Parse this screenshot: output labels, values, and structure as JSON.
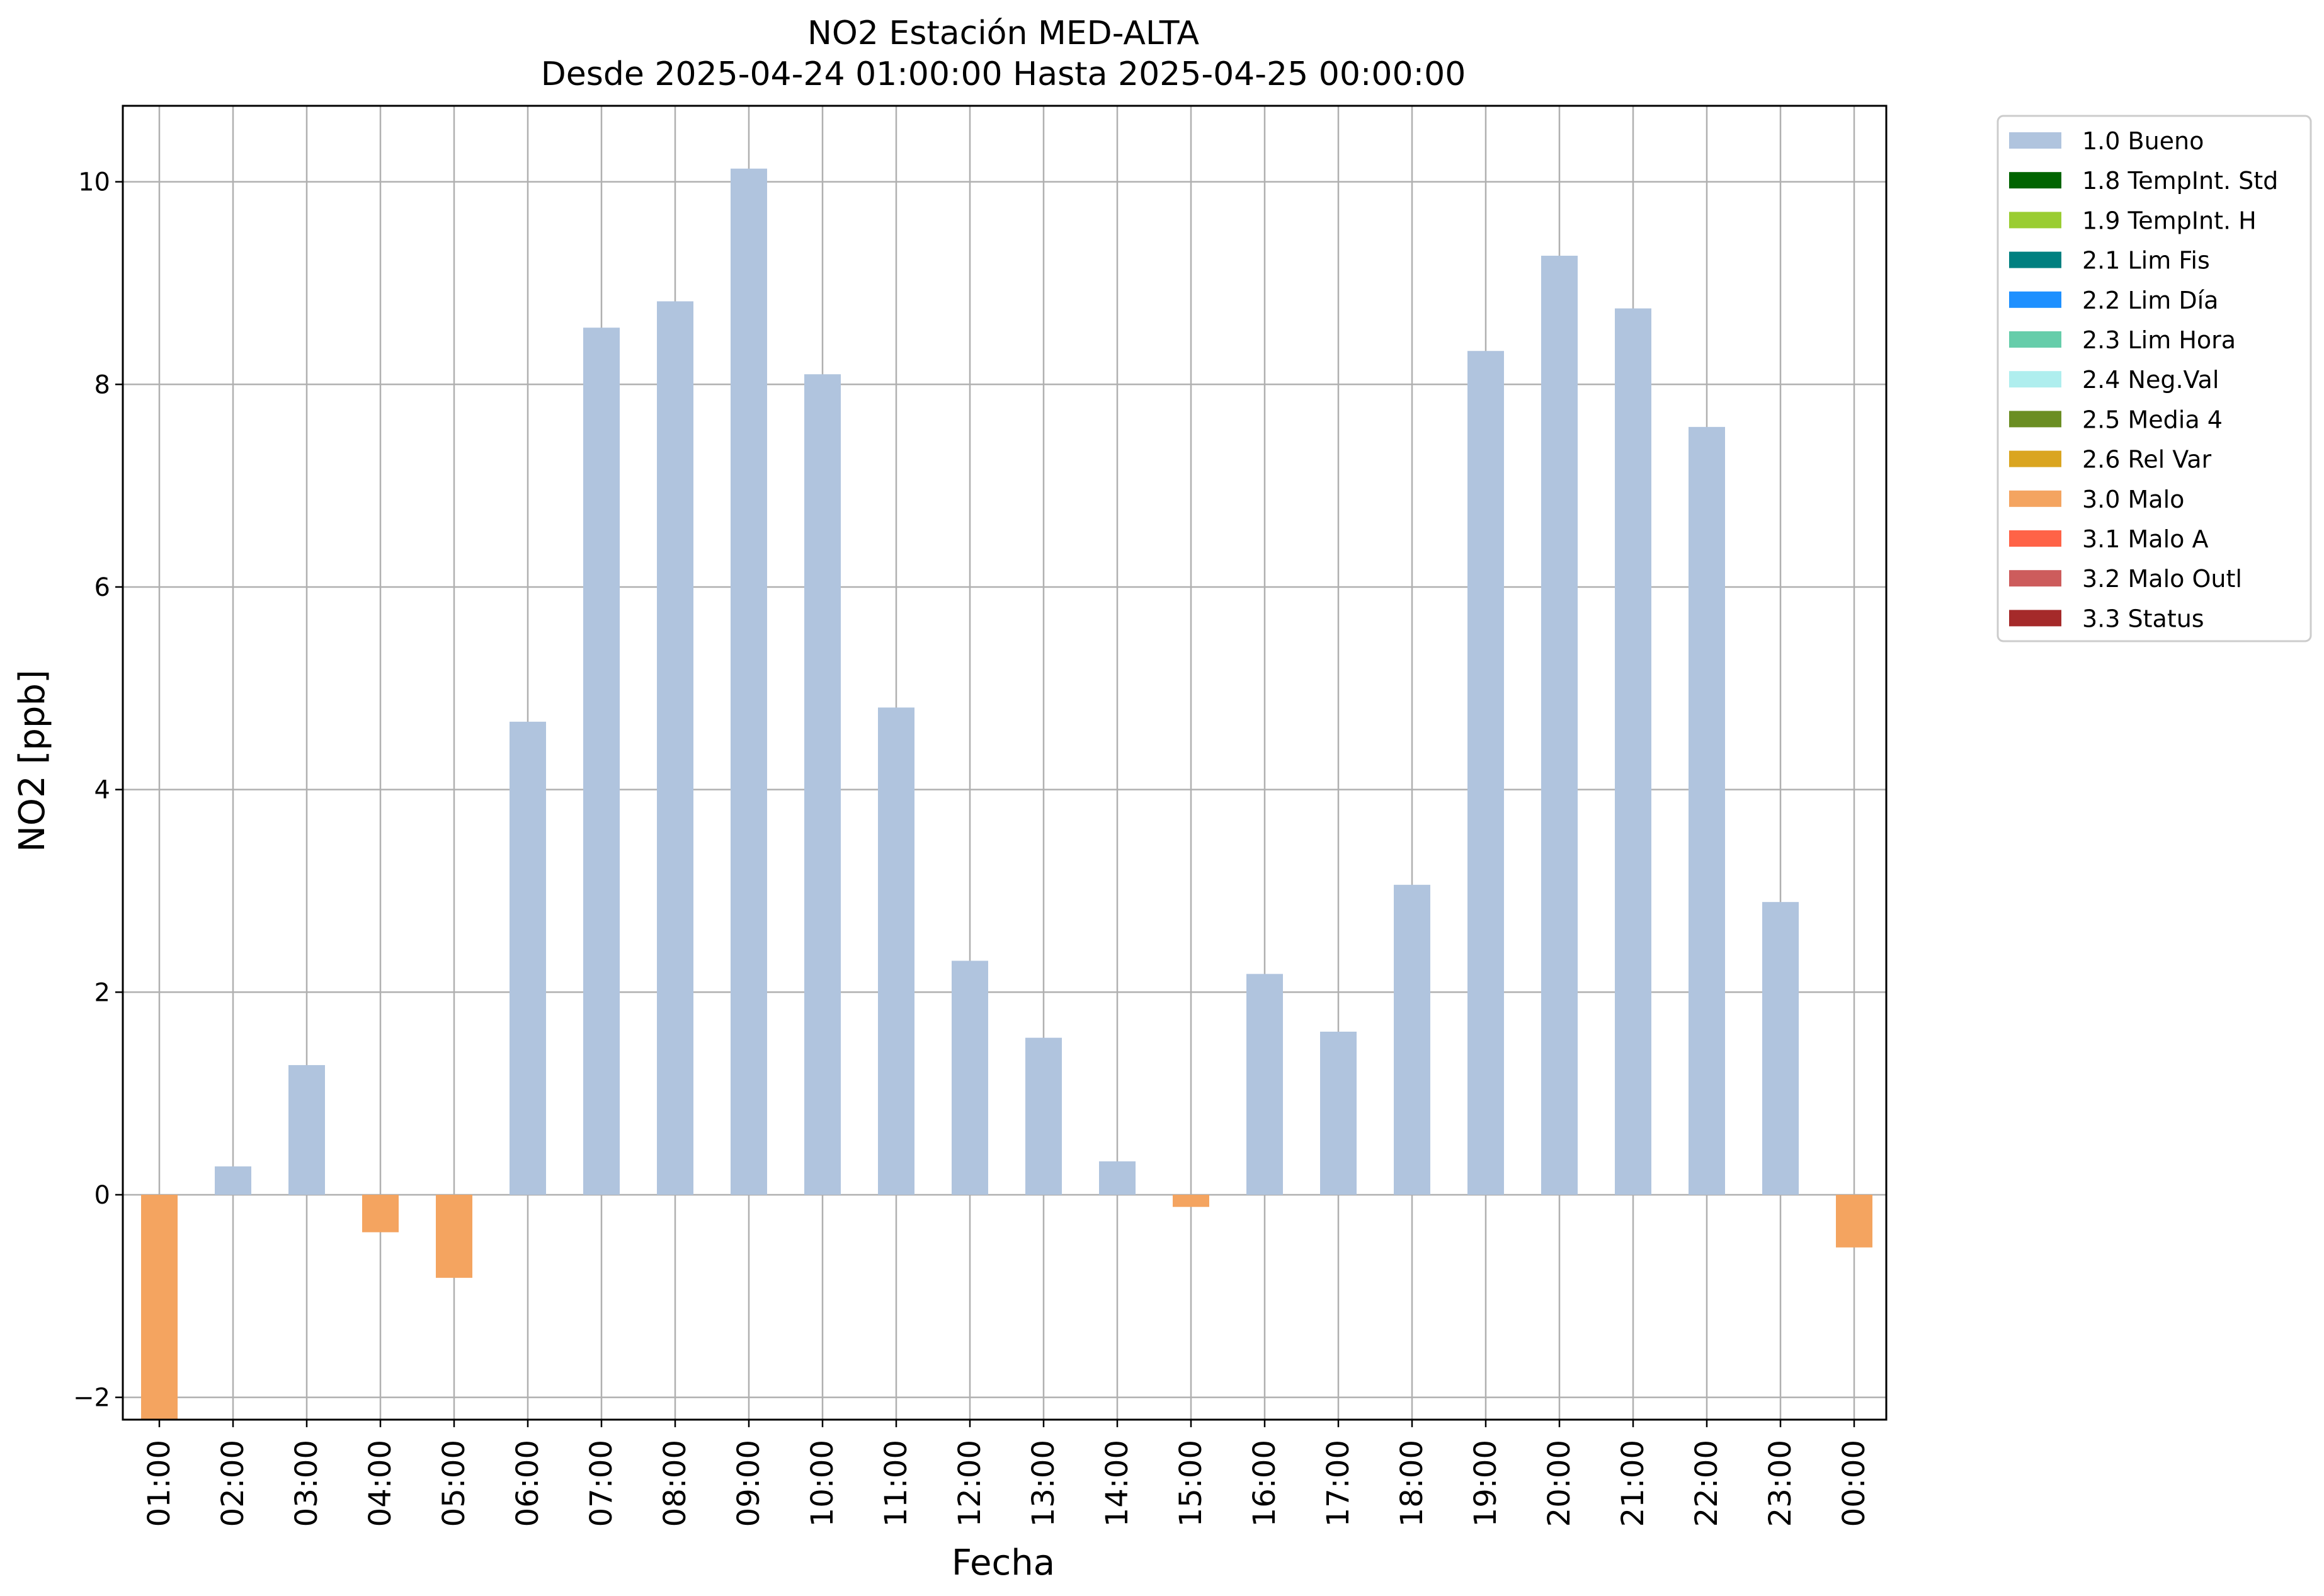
{
  "chart_data": {
    "type": "bar",
    "title": "NO2 Estación MED-ALTA",
    "subtitle": "Desde 2025-04-24 01:00:00 Hasta 2025-04-25 00:00:00",
    "xlabel": "Fecha",
    "ylabel": "NO2 [ppb]",
    "ylim": [
      -2.22,
      10.75
    ],
    "yticks": [
      -2,
      0,
      2,
      4,
      6,
      8,
      10
    ],
    "ytick_labels": [
      "−2",
      "0",
      "2",
      "4",
      "6",
      "8",
      "10"
    ],
    "grid": true,
    "legend_position": "outside-top-right",
    "categories": [
      "01:00",
      "02:00",
      "03:00",
      "04:00",
      "05:00",
      "06:00",
      "07:00",
      "08:00",
      "09:00",
      "10:00",
      "11:00",
      "12:00",
      "13:00",
      "14:00",
      "15:00",
      "16:00",
      "17:00",
      "18:00",
      "19:00",
      "20:00",
      "21:00",
      "22:00",
      "23:00",
      "00:00"
    ],
    "values": [
      -2.25,
      0.28,
      1.28,
      -0.37,
      -0.82,
      4.67,
      8.56,
      8.82,
      10.13,
      8.1,
      4.81,
      2.31,
      1.55,
      0.33,
      -0.12,
      2.18,
      1.61,
      3.06,
      8.33,
      9.27,
      8.75,
      7.58,
      2.89,
      -0.52
    ],
    "quality": [
      "3.0 Malo",
      "1.0 Bueno",
      "1.0 Bueno",
      "3.0 Malo",
      "3.0 Malo",
      "1.0 Bueno",
      "1.0 Bueno",
      "1.0 Bueno",
      "1.0 Bueno",
      "1.0 Bueno",
      "1.0 Bueno",
      "1.0 Bueno",
      "1.0 Bueno",
      "1.0 Bueno",
      "3.0 Malo",
      "1.0 Bueno",
      "1.0 Bueno",
      "1.0 Bueno",
      "1.0 Bueno",
      "1.0 Bueno",
      "1.0 Bueno",
      "1.0 Bueno",
      "1.0 Bueno",
      "3.0 Malo"
    ],
    "legend": [
      {
        "label": "1.0 Bueno",
        "color": "#b0c4de"
      },
      {
        "label": "1.8 TempInt. Std",
        "color": "#006400"
      },
      {
        "label": "1.9 TempInt. H",
        "color": "#9acd32"
      },
      {
        "label": "2.1 Lim Fis",
        "color": "#008080"
      },
      {
        "label": "2.2 Lim Día",
        "color": "#1e90ff"
      },
      {
        "label": "2.3 Lim Hora",
        "color": "#66cdaa"
      },
      {
        "label": "2.4 Neg.Val",
        "color": "#afeeee"
      },
      {
        "label": "2.5 Media 4",
        "color": "#6b8e23"
      },
      {
        "label": "2.6 Rel Var",
        "color": "#daa520"
      },
      {
        "label": "3.0 Malo",
        "color": "#f4a460"
      },
      {
        "label": "3.1 Malo A",
        "color": "#ff6347"
      },
      {
        "label": "3.2 Malo Outl",
        "color": "#cd5c5c"
      },
      {
        "label": "3.3 Status",
        "color": "#a52a2a"
      }
    ]
  }
}
